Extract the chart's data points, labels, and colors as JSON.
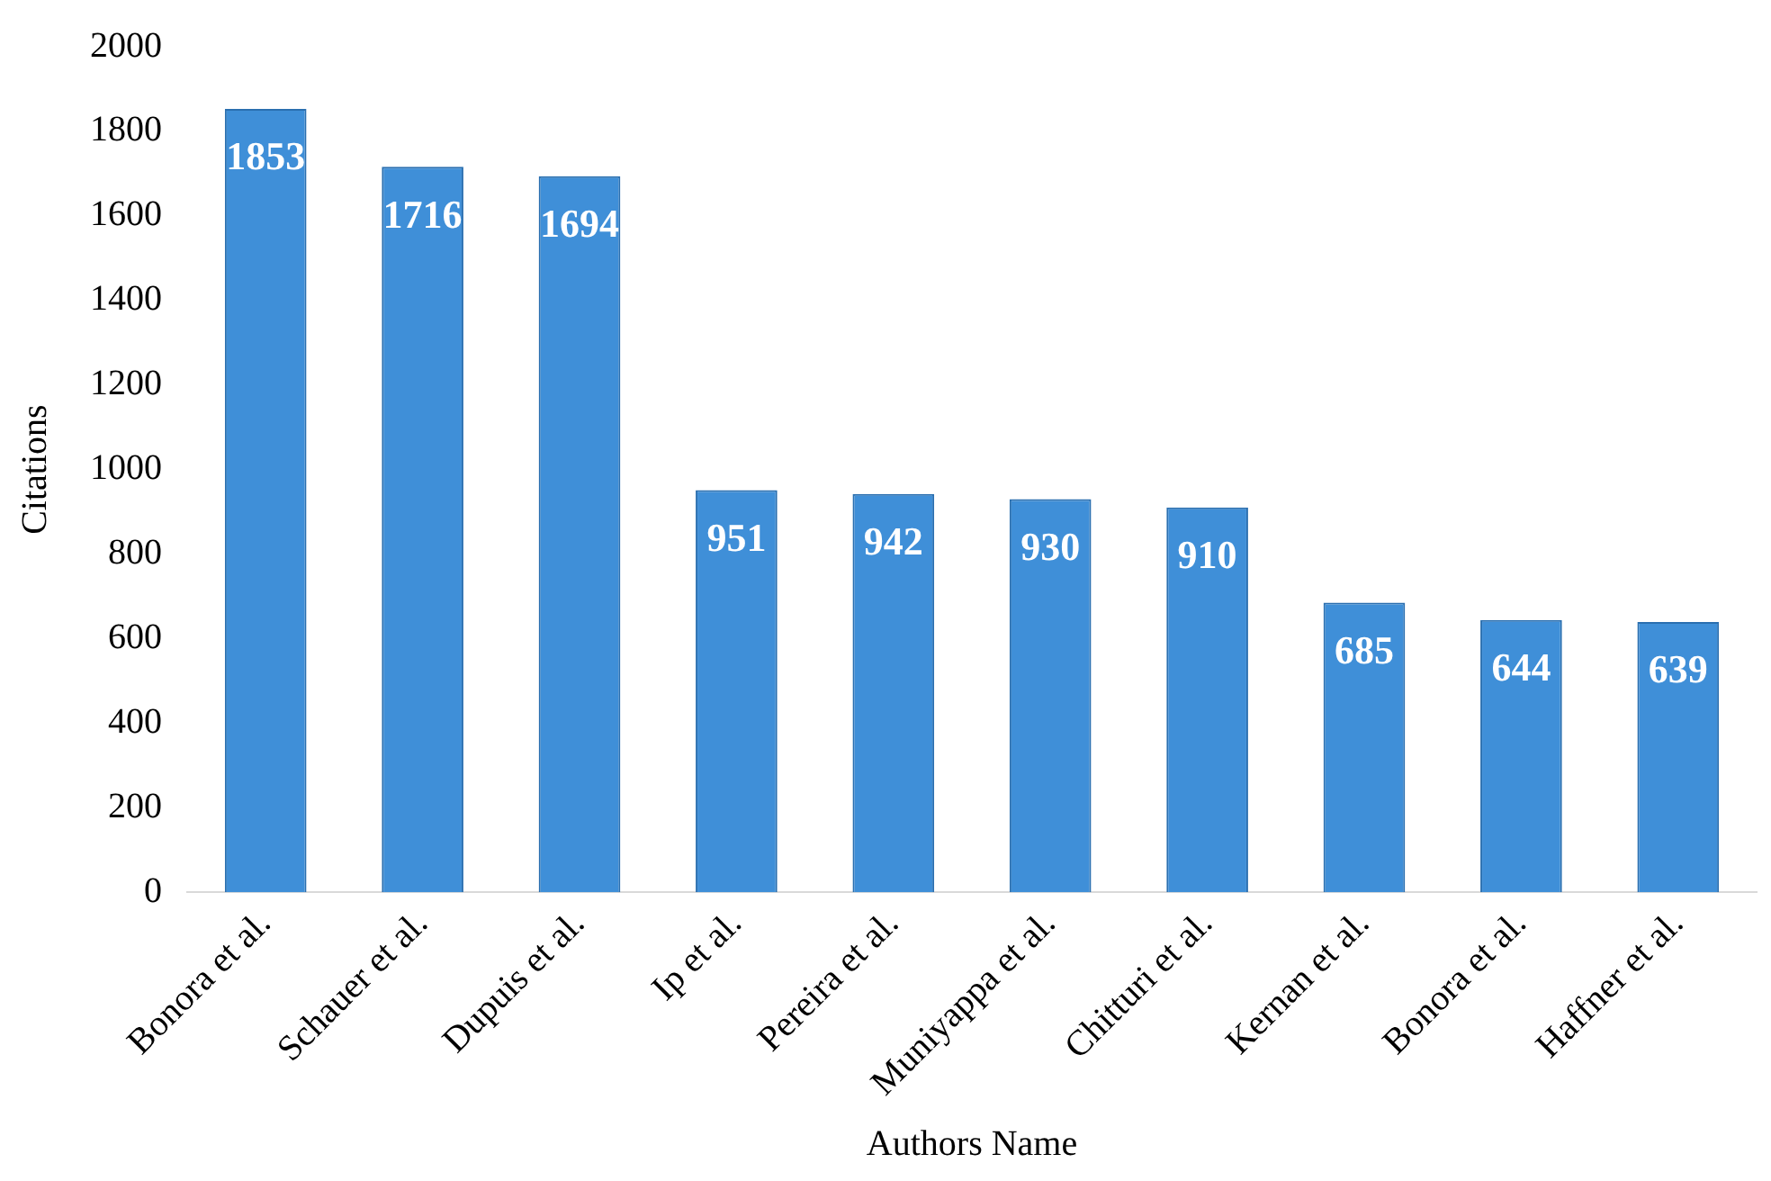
{
  "chart_data": {
    "type": "bar",
    "xlabel": "Authors Name",
    "ylabel": "Citations",
    "categories": [
      "Bonora et al.",
      "Schauer et al.",
      "Dupuis et al.",
      "Ip et al.",
      "Pereira et al.",
      "Muniyappa et al.",
      "Chitturi et al.",
      "Kernan et al.",
      "Bonora et al.",
      "Haffner et al."
    ],
    "values": [
      1853,
      1716,
      1694,
      951,
      942,
      930,
      910,
      685,
      644,
      639
    ],
    "color": "#3f8fd8",
    "ylim": [
      0,
      2000
    ],
    "yticks": [
      0,
      200,
      400,
      600,
      800,
      1000,
      1200,
      1400,
      1600,
      1800,
      2000
    ],
    "grid": false,
    "legend": false,
    "data_labels": true
  }
}
